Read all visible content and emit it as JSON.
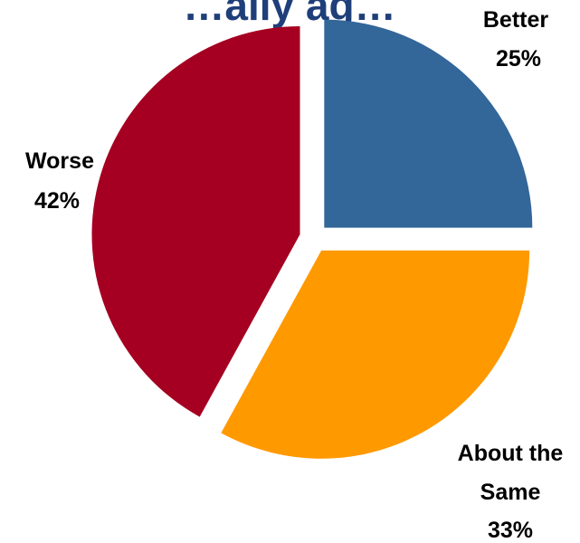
{
  "chart_data": {
    "type": "pie",
    "title": "…ally ag…",
    "title_color": "#1F3F7A",
    "slices": [
      {
        "label": "Better",
        "value": 25,
        "value_label": "25%",
        "color": "#336699"
      },
      {
        "label": "About the Same",
        "value": 33,
        "value_label": "33%",
        "color": "#FF9900"
      },
      {
        "label": "Worse",
        "value": 42,
        "value_label": "42%",
        "color": "#A50021"
      }
    ]
  }
}
